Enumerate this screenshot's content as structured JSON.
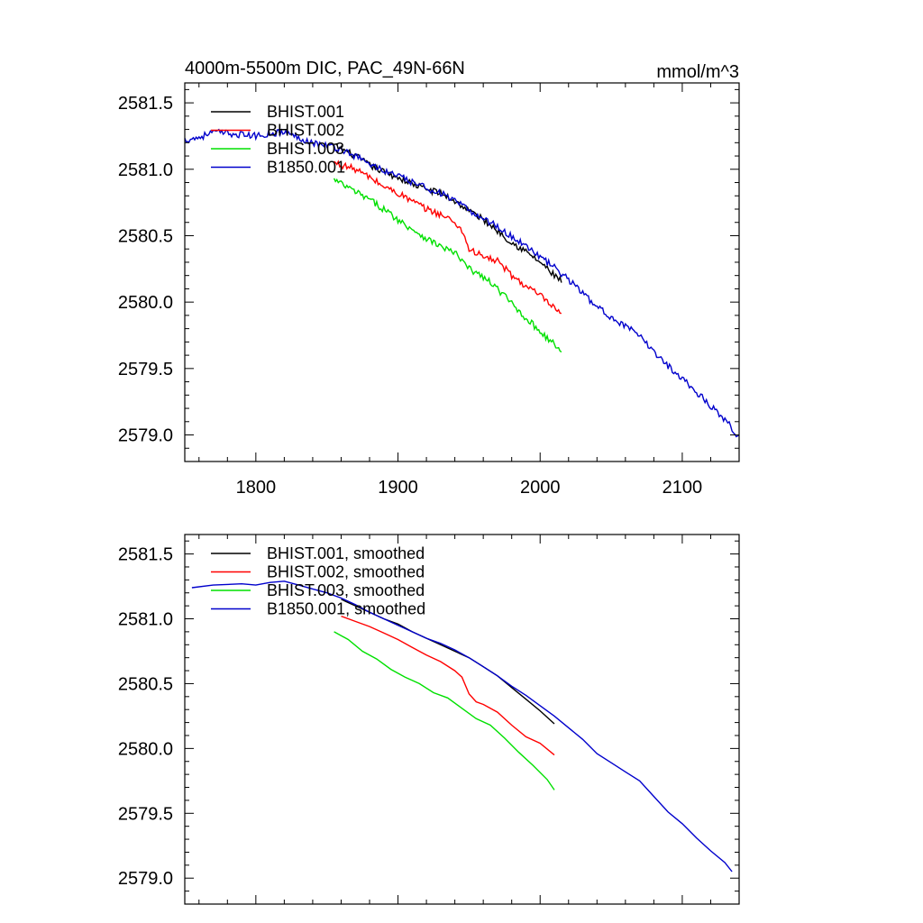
{
  "chart_data": [
    {
      "type": "line",
      "title": "4000m-5500m DIC, PAC_49N-66N",
      "units": "mmol/m^3",
      "xlim": [
        1750,
        2140
      ],
      "ylim": [
        2578.8,
        2581.65
      ],
      "x_ticks": [
        1800,
        1900,
        2000,
        2100
      ],
      "x_tick_labels": [
        "1800",
        "1900",
        "2000",
        "2100"
      ],
      "y_ticks": [
        2579.0,
        2579.5,
        2580.0,
        2580.5,
        2581.0,
        2581.5
      ],
      "y_tick_labels": [
        "2579.0",
        "2579.5",
        "2580.0",
        "2580.5",
        "2581.0",
        "2581.5"
      ],
      "legend_position": "top-left",
      "series": [
        {
          "name": "BHIST.001",
          "color": "#000000",
          "noise": 0.025,
          "x": [
            1855,
            1870,
            1880,
            1890,
            1900,
            1910,
            1920,
            1930,
            1940,
            1950,
            1960,
            1970,
            1980,
            1990,
            2000,
            2010,
            2015
          ],
          "y": [
            2581.18,
            2581.1,
            2581.03,
            2580.98,
            2580.94,
            2580.89,
            2580.85,
            2580.82,
            2580.76,
            2580.69,
            2580.62,
            2580.54,
            2580.45,
            2580.38,
            2580.3,
            2580.2,
            2580.16
          ]
        },
        {
          "name": "BHIST.002",
          "color": "#ff0000",
          "noise": 0.025,
          "x": [
            1855,
            1870,
            1880,
            1890,
            1900,
            1910,
            1920,
            1930,
            1940,
            1945,
            1950,
            1960,
            1970,
            1980,
            1990,
            2000,
            2010,
            2015
          ],
          "y": [
            2581.05,
            2581.0,
            2580.94,
            2580.87,
            2580.82,
            2580.76,
            2580.7,
            2580.66,
            2580.6,
            2580.54,
            2580.4,
            2580.34,
            2580.31,
            2580.2,
            2580.12,
            2580.05,
            2579.95,
            2579.9
          ]
        },
        {
          "name": "BHIST.003",
          "color": "#00e000",
          "noise": 0.025,
          "x": [
            1855,
            1870,
            1880,
            1890,
            1900,
            1910,
            1920,
            1930,
            1940,
            1950,
            1960,
            1970,
            1980,
            1990,
            2000,
            2010,
            2015
          ],
          "y": [
            2580.92,
            2580.83,
            2580.77,
            2580.7,
            2580.62,
            2580.55,
            2580.48,
            2580.42,
            2580.37,
            2580.25,
            2580.19,
            2580.1,
            2579.99,
            2579.88,
            2579.78,
            2579.68,
            2579.63
          ]
        },
        {
          "name": "B1850.001",
          "color": "#0000cc",
          "noise": 0.025,
          "x": [
            1750,
            1760,
            1770,
            1780,
            1790,
            1800,
            1810,
            1820,
            1830,
            1840,
            1850,
            1860,
            1870,
            1880,
            1890,
            1900,
            1910,
            1920,
            1930,
            1940,
            1950,
            1960,
            1970,
            1980,
            1990,
            2000,
            2010,
            2020,
            2030,
            2040,
            2050,
            2060,
            2070,
            2080,
            2090,
            2100,
            2110,
            2120,
            2130,
            2140
          ],
          "y": [
            2581.22,
            2581.24,
            2581.28,
            2581.27,
            2581.26,
            2581.25,
            2581.27,
            2581.28,
            2581.24,
            2581.2,
            2581.18,
            2581.15,
            2581.1,
            2581.04,
            2580.99,
            2580.95,
            2580.9,
            2580.86,
            2580.82,
            2580.76,
            2580.69,
            2580.63,
            2580.57,
            2580.49,
            2580.43,
            2580.34,
            2580.26,
            2580.17,
            2580.07,
            2579.96,
            2579.89,
            2579.82,
            2579.74,
            2579.63,
            2579.52,
            2579.43,
            2579.32,
            2579.22,
            2579.12,
            2578.98
          ]
        }
      ]
    },
    {
      "type": "line",
      "xlim": [
        1750,
        2140
      ],
      "ylim": [
        2578.8,
        2581.65
      ],
      "x_ticks": [
        1800,
        1900,
        2000,
        2100
      ],
      "x_tick_labels": [],
      "y_ticks": [
        2579.0,
        2579.5,
        2580.0,
        2580.5,
        2581.0,
        2581.5
      ],
      "y_tick_labels": [
        "2579.0",
        "2579.5",
        "2580.0",
        "2580.5",
        "2581.0",
        "2581.5"
      ],
      "legend_position": "top-left",
      "series": [
        {
          "name": "BHIST.001, smoothed",
          "color": "#000000",
          "noise": 0,
          "x": [
            1860,
            1870,
            1880,
            1890,
            1900,
            1910,
            1920,
            1930,
            1940,
            1950,
            1960,
            1970,
            1980,
            1990,
            2000,
            2010
          ],
          "y": [
            2581.15,
            2581.1,
            2581.05,
            2581.0,
            2580.96,
            2580.9,
            2580.85,
            2580.8,
            2580.75,
            2580.7,
            2580.63,
            2580.56,
            2580.47,
            2580.38,
            2580.29,
            2580.19
          ]
        },
        {
          "name": "BHIST.002, smoothed",
          "color": "#ff0000",
          "noise": 0,
          "x": [
            1860,
            1870,
            1880,
            1890,
            1900,
            1910,
            1920,
            1930,
            1940,
            1945,
            1950,
            1955,
            1960,
            1970,
            1980,
            1990,
            2000,
            2010
          ],
          "y": [
            2581.02,
            2580.98,
            2580.94,
            2580.89,
            2580.84,
            2580.78,
            2580.72,
            2580.67,
            2580.6,
            2580.55,
            2580.42,
            2580.36,
            2580.34,
            2580.28,
            2580.18,
            2580.09,
            2580.04,
            2579.95
          ]
        },
        {
          "name": "BHIST.003, smoothed",
          "color": "#00e000",
          "noise": 0,
          "x": [
            1855,
            1865,
            1875,
            1885,
            1895,
            1905,
            1915,
            1925,
            1935,
            1945,
            1955,
            1965,
            1975,
            1985,
            1995,
            2005,
            2010
          ],
          "y": [
            2580.9,
            2580.84,
            2580.75,
            2580.69,
            2580.61,
            2580.55,
            2580.5,
            2580.43,
            2580.39,
            2580.31,
            2580.23,
            2580.18,
            2580.08,
            2579.97,
            2579.87,
            2579.76,
            2579.68
          ]
        },
        {
          "name": "B1850.001, smoothed",
          "color": "#0000cc",
          "noise": 0,
          "x": [
            1755,
            1770,
            1790,
            1800,
            1810,
            1820,
            1830,
            1840,
            1850,
            1860,
            1870,
            1880,
            1890,
            1900,
            1910,
            1920,
            1930,
            1940,
            1950,
            1960,
            1970,
            1980,
            1990,
            2000,
            2010,
            2020,
            2030,
            2040,
            2050,
            2060,
            2070,
            2080,
            2090,
            2100,
            2110,
            2120,
            2130,
            2135
          ],
          "y": [
            2581.24,
            2581.26,
            2581.27,
            2581.26,
            2581.28,
            2581.29,
            2581.26,
            2581.23,
            2581.2,
            2581.16,
            2581.11,
            2581.05,
            2581.0,
            2580.95,
            2580.9,
            2580.85,
            2580.81,
            2580.76,
            2580.7,
            2580.63,
            2580.56,
            2580.48,
            2580.41,
            2580.33,
            2580.25,
            2580.16,
            2580.07,
            2579.96,
            2579.89,
            2579.82,
            2579.75,
            2579.63,
            2579.51,
            2579.42,
            2579.31,
            2579.21,
            2579.12,
            2579.05
          ]
        }
      ]
    }
  ]
}
